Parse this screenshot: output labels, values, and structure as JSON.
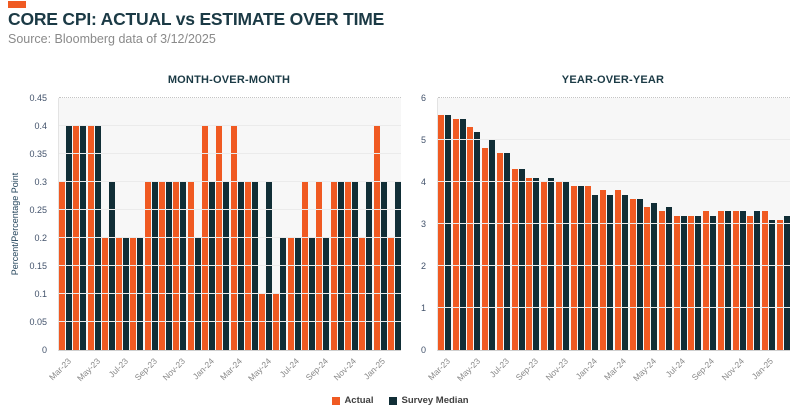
{
  "header": {
    "title": "CORE CPI: ACTUAL vs ESTIMATE OVER TIME",
    "subtitle": "Source: Bloomberg data of 3/12/2025"
  },
  "colors": {
    "actual": "#f05a22",
    "median": "#112e36",
    "accent": "#f05a22",
    "title_text": "#1b3a45"
  },
  "legend": {
    "actual_label": "Actual",
    "median_label": "Survey Median"
  },
  "chart_data": [
    {
      "type": "bar",
      "title": "MONTH-OVER-MONTH",
      "xlabel": "",
      "ylabel": "Percent/Percentage Point",
      "ylim": [
        0,
        0.45
      ],
      "grid": true,
      "legend_position": "bottom-center",
      "yticks": [
        0,
        0.05,
        0.1,
        0.15,
        0.2,
        0.25,
        0.3,
        0.35,
        0.4,
        0.45
      ],
      "ytick_labels": [
        "0",
        "0.05",
        "0.1",
        "0.15",
        "0.2",
        "0.25",
        "0.3",
        "0.35",
        "0.4",
        "0.45"
      ],
      "categories": [
        "Mar-23",
        "Apr-23",
        "May-23",
        "Jun-23",
        "Jul-23",
        "Aug-23",
        "Sep-23",
        "Oct-23",
        "Nov-23",
        "Dec-23",
        "Jan-24",
        "Feb-24",
        "Mar-24",
        "Apr-24",
        "May-24",
        "Jun-24",
        "Jul-24",
        "Aug-24",
        "Sep-24",
        "Oct-24",
        "Nov-24",
        "Dec-24",
        "Jan-25",
        "Feb-25"
      ],
      "xtick_labels": [
        "Mar-23",
        "May-23",
        "Jul-23",
        "Sep-23",
        "Nov-23",
        "Jan-24",
        "Mar-24",
        "May-24",
        "Jul-24",
        "Sep-24",
        "Nov-24",
        "Jan-25"
      ],
      "series": [
        {
          "name": "Actual",
          "color": "#f05a22",
          "values": [
            0.3,
            0.4,
            0.4,
            0.2,
            0.2,
            0.2,
            0.3,
            0.3,
            0.3,
            0.3,
            0.4,
            0.4,
            0.4,
            0.3,
            0.1,
            0.1,
            0.2,
            0.3,
            0.3,
            0.3,
            0.3,
            0.2,
            0.4,
            0.2
          ]
        },
        {
          "name": "Survey Median",
          "color": "#112e36",
          "values": [
            0.4,
            0.4,
            0.4,
            0.3,
            0.2,
            0.2,
            0.3,
            0.3,
            0.3,
            0.2,
            0.3,
            0.3,
            0.3,
            0.3,
            0.3,
            0.2,
            0.2,
            0.2,
            0.2,
            0.3,
            0.3,
            0.3,
            0.3,
            0.3
          ]
        }
      ]
    },
    {
      "type": "bar",
      "title": "YEAR-OVER-YEAR",
      "xlabel": "",
      "ylabel": "",
      "ylim": [
        0,
        6
      ],
      "grid": true,
      "legend_position": "bottom-center",
      "yticks": [
        0,
        1,
        2,
        3,
        4,
        5,
        6
      ],
      "ytick_labels": [
        "0",
        "1",
        "2",
        "3",
        "4",
        "5",
        "6"
      ],
      "categories": [
        "Mar-23",
        "Apr-23",
        "May-23",
        "Jun-23",
        "Jul-23",
        "Aug-23",
        "Sep-23",
        "Oct-23",
        "Nov-23",
        "Dec-23",
        "Jan-24",
        "Feb-24",
        "Mar-24",
        "Apr-24",
        "May-24",
        "Jun-24",
        "Jul-24",
        "Aug-24",
        "Sep-24",
        "Oct-24",
        "Nov-24",
        "Dec-24",
        "Jan-25",
        "Feb-25"
      ],
      "xtick_labels": [
        "Mar-23",
        "May-23",
        "Jul-23",
        "Sep-23",
        "Nov-23",
        "Jan-24",
        "Mar-24",
        "May-24",
        "Jul-24",
        "Sep-24",
        "Nov-24",
        "Jan-25"
      ],
      "series": [
        {
          "name": "Actual",
          "color": "#f05a22",
          "values": [
            5.6,
            5.5,
            5.3,
            4.8,
            4.7,
            4.3,
            4.1,
            4.0,
            4.0,
            3.9,
            3.9,
            3.8,
            3.8,
            3.6,
            3.4,
            3.3,
            3.2,
            3.2,
            3.3,
            3.3,
            3.3,
            3.2,
            3.3,
            3.1
          ]
        },
        {
          "name": "Survey Median",
          "color": "#112e36",
          "values": [
            5.6,
            5.5,
            5.2,
            5.0,
            4.7,
            4.3,
            4.1,
            4.1,
            4.0,
            3.9,
            3.7,
            3.7,
            3.7,
            3.6,
            3.5,
            3.4,
            3.2,
            3.2,
            3.2,
            3.3,
            3.3,
            3.3,
            3.1,
            3.2
          ]
        }
      ]
    }
  ]
}
